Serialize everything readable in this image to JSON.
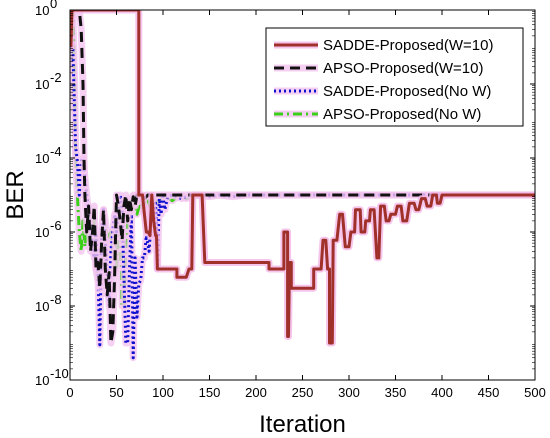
{
  "chart_data": {
    "type": "line",
    "title": "",
    "xlabel": "Iteration",
    "ylabel": "BER",
    "xlim": [
      0,
      500
    ],
    "ylim": [
      1e-10,
      1
    ],
    "yscale": "log",
    "grid": false,
    "legend_position": "top-right",
    "x_ticks": [
      "0",
      "50",
      "100",
      "150",
      "200",
      "250",
      "300",
      "350",
      "400",
      "450",
      "500"
    ],
    "y_ticks": [
      {
        "base": "10",
        "exp": "0"
      },
      {
        "base": "10",
        "exp": "-2"
      },
      {
        "base": "10",
        "exp": "-4"
      },
      {
        "base": "10",
        "exp": "-6"
      },
      {
        "base": "10",
        "exp": "-8"
      },
      {
        "base": "10",
        "exp": "-10"
      }
    ],
    "series": [
      {
        "name": "SADDE-Proposed(W=10)",
        "color": "#a0302a",
        "halo": "#f2b6e6",
        "style": "solid",
        "points": [
          [
            1,
            0.1
          ],
          [
            2,
            0.9
          ],
          [
            4,
            1
          ],
          [
            30,
            1
          ],
          [
            50,
            1
          ],
          [
            70,
            1
          ],
          [
            74,
            1
          ],
          [
            74,
            1e-05
          ],
          [
            78,
            1e-05
          ],
          [
            80,
            3e-06
          ],
          [
            82,
            1e-06
          ],
          [
            84,
            1e-06
          ],
          [
            86,
            8e-07
          ],
          [
            88,
            1e-05
          ],
          [
            90,
            2e-06
          ],
          [
            92,
            8e-07
          ],
          [
            93,
            8e-07
          ],
          [
            94,
            1e-07
          ],
          [
            100,
            1e-07
          ],
          [
            105,
            1e-07
          ],
          [
            110,
            1e-07
          ],
          [
            115,
            1e-07
          ],
          [
            115,
            6e-08
          ],
          [
            125,
            6e-08
          ],
          [
            125,
            6e-08
          ],
          [
            128,
            1e-07
          ],
          [
            131,
            1e-07
          ],
          [
            132,
            1e-05
          ],
          [
            137,
            1e-05
          ],
          [
            137,
            1e-05
          ],
          [
            142,
            1e-05
          ],
          [
            145,
            1.5e-07
          ],
          [
            180,
            1.5e-07
          ],
          [
            200,
            1.5e-07
          ],
          [
            214,
            1.5e-07
          ],
          [
            214,
            1e-07
          ],
          [
            230,
            1e-07
          ],
          [
            230,
            1e-06
          ],
          [
            234,
            1e-06
          ],
          [
            234,
            1.5e-09
          ],
          [
            235,
            1.5e-09
          ],
          [
            236,
            1.5e-07
          ],
          [
            238,
            1.5e-07
          ],
          [
            238,
            3e-08
          ],
          [
            255,
            3e-08
          ],
          [
            262,
            3e-08
          ],
          [
            262,
            1e-07
          ],
          [
            270,
            1e-07
          ],
          [
            272,
            6e-07
          ],
          [
            275,
            6e-07
          ],
          [
            277,
            1e-07
          ],
          [
            279,
            1e-07
          ],
          [
            279,
            1e-09
          ],
          [
            282,
            1e-09
          ],
          [
            283,
            6e-07
          ],
          [
            287,
            6e-07
          ],
          [
            290,
            3e-06
          ],
          [
            293,
            3e-06
          ],
          [
            296,
            4e-07
          ],
          [
            300,
            4e-07
          ],
          [
            302,
            1e-06
          ],
          [
            306,
            1e-06
          ],
          [
            307,
            4e-06
          ],
          [
            312,
            4e-06
          ],
          [
            313,
            1e-06
          ],
          [
            317,
            1e-06
          ],
          [
            318,
            2e-06
          ],
          [
            322,
            2e-06
          ],
          [
            323,
            4e-06
          ],
          [
            327,
            4e-06
          ],
          [
            330,
            2e-07
          ],
          [
            332,
            2e-07
          ],
          [
            334,
            5e-06
          ],
          [
            338,
            5e-06
          ],
          [
            340,
            2e-06
          ],
          [
            343,
            2e-06
          ],
          [
            345,
            3e-06
          ],
          [
            350,
            3e-06
          ],
          [
            352,
            5e-06
          ],
          [
            356,
            5e-06
          ],
          [
            358,
            2e-06
          ],
          [
            362,
            2e-06
          ],
          [
            365,
            6e-06
          ],
          [
            370,
            6e-06
          ],
          [
            372,
            4e-06
          ],
          [
            375,
            4e-06
          ],
          [
            378,
            8e-06
          ],
          [
            382,
            8e-06
          ],
          [
            384,
            5e-06
          ],
          [
            388,
            5e-06
          ],
          [
            390,
            1e-05
          ],
          [
            394,
            1e-05
          ],
          [
            395,
            6e-06
          ],
          [
            398,
            6e-06
          ],
          [
            400,
            1e-05
          ],
          [
            410,
            1e-05
          ],
          [
            500,
            1e-05
          ]
        ]
      },
      {
        "name": "APSO-Proposed(W=10)",
        "color": "#111111",
        "halo": "#f3c4ef",
        "style": "dashed",
        "points": [
          [
            0,
            0.9
          ],
          [
            2,
            1
          ],
          [
            10,
            1
          ],
          [
            12,
            0.3
          ],
          [
            14,
            0.01
          ],
          [
            15,
            0.0001
          ],
          [
            16,
            1e-05
          ],
          [
            18,
            1e-06
          ],
          [
            20,
            5e-06
          ],
          [
            22,
            3e-07
          ],
          [
            24,
            8e-07
          ],
          [
            26,
            5e-06
          ],
          [
            28,
            1e-07
          ],
          [
            30,
            1.5e-07
          ],
          [
            32,
            3e-08
          ],
          [
            34,
            5e-07
          ],
          [
            36,
            4e-06
          ],
          [
            38,
            1e-07
          ],
          [
            40,
            2e-08
          ],
          [
            42,
            8e-08
          ],
          [
            44,
            1e-09
          ],
          [
            46,
            2e-09
          ],
          [
            48,
            6e-08
          ],
          [
            50,
            1e-05
          ],
          [
            52,
            5e-06
          ],
          [
            54,
            2e-06
          ],
          [
            56,
            6e-07
          ],
          [
            58,
            5e-06
          ],
          [
            60,
            1e-05
          ],
          [
            62,
            2e-06
          ],
          [
            64,
            8e-06
          ],
          [
            66,
            4e-06
          ],
          [
            68,
            9e-06
          ],
          [
            70,
            5e-06
          ],
          [
            72,
            1e-05
          ],
          [
            76,
            1e-05
          ],
          [
            80,
            8e-06
          ],
          [
            84,
            1e-05
          ],
          [
            90,
            1e-05
          ],
          [
            500,
            1e-05
          ]
        ]
      },
      {
        "name": "SADDE-Proposed(No W)",
        "color": "#1010d0",
        "halo": "#f3c4ef",
        "style": "dotted",
        "points": [
          [
            0,
            0.1
          ],
          [
            3,
            0.1
          ],
          [
            6,
            0.0002
          ],
          [
            8,
            8e-05
          ],
          [
            10,
            1e-05
          ],
          [
            12,
            8e-05
          ],
          [
            14,
            0.0001
          ],
          [
            16,
            3e-05
          ],
          [
            18,
            1e-05
          ],
          [
            20,
            3e-06
          ],
          [
            22,
            1e-06
          ],
          [
            24,
            5e-07
          ],
          [
            26,
            2e-07
          ],
          [
            28,
            8e-07
          ],
          [
            30,
            8e-08
          ],
          [
            32,
            9e-10
          ],
          [
            34,
            1e-06
          ],
          [
            36,
            4e-06
          ],
          [
            40,
            8e-08
          ],
          [
            42,
            1e-08
          ],
          [
            44,
            3e-07
          ],
          [
            46,
            1e-06
          ],
          [
            48,
            3e-06
          ],
          [
            50,
            1e-06
          ],
          [
            52,
            5e-06
          ],
          [
            54,
            1e-05
          ],
          [
            56,
            4e-06
          ],
          [
            60,
            1e-09
          ],
          [
            62,
            1e-09
          ],
          [
            64,
            1e-07
          ],
          [
            66,
            3e-06
          ],
          [
            68,
            4e-10
          ],
          [
            70,
            2e-07
          ],
          [
            72,
            5e-09
          ],
          [
            74,
            4e-08
          ],
          [
            76,
            5e-08
          ],
          [
            78,
            2e-07
          ],
          [
            80,
            2e-07
          ],
          [
            82,
            8e-07
          ],
          [
            85,
            3e-07
          ],
          [
            88,
            4e-06
          ],
          [
            90,
            2e-06
          ],
          [
            92,
            6e-06
          ],
          [
            94,
            1e-07
          ],
          [
            96,
            8e-06
          ],
          [
            98,
            3e-06
          ],
          [
            100,
            9e-06
          ],
          [
            102,
            4e-06
          ],
          [
            105,
            9e-06
          ],
          [
            110,
            1e-05
          ],
          [
            120,
            8e-06
          ],
          [
            130,
            1e-05
          ],
          [
            150,
            9e-06
          ],
          [
            160,
            1e-05
          ],
          [
            175,
            9e-06
          ],
          [
            190,
            1e-05
          ],
          [
            500,
            1e-05
          ]
        ]
      },
      {
        "name": "APSO-Proposed(No W)",
        "color": "#3ccf1a",
        "halo": "#f3c4ef",
        "style": "dashdot",
        "points": [
          [
            0,
            1
          ],
          [
            3,
            1
          ],
          [
            5,
            0.01
          ],
          [
            6,
            0.0001
          ],
          [
            8,
            1e-05
          ],
          [
            10,
            1e-06
          ],
          [
            12,
            3e-07
          ],
          [
            14,
            2e-06
          ],
          [
            16,
            4e-07
          ],
          [
            18,
            1e-06
          ],
          [
            20,
            6e-07
          ],
          [
            22,
            3e-06
          ],
          [
            24,
            8e-07
          ],
          [
            26,
            2e-06
          ],
          [
            28,
            1e-07
          ],
          [
            30,
            5e-08
          ],
          [
            32,
            5e-08
          ],
          [
            34,
            1e-07
          ],
          [
            36,
            4e-06
          ],
          [
            38,
            2e-06
          ],
          [
            40,
            6e-07
          ],
          [
            42,
            8e-07
          ],
          [
            44,
            1e-06
          ],
          [
            46,
            3e-07
          ],
          [
            48,
            8e-07
          ],
          [
            50,
            1e-07
          ],
          [
            52,
            2e-06
          ],
          [
            54,
            6e-06
          ],
          [
            56,
            1e-08
          ],
          [
            58,
            1e-08
          ],
          [
            60,
            3e-07
          ],
          [
            62,
            2e-06
          ],
          [
            64,
            8e-06
          ],
          [
            66,
            4e-06
          ],
          [
            68,
            1e-05
          ],
          [
            70,
            6e-06
          ],
          [
            72,
            3e-06
          ],
          [
            75,
            6e-06
          ],
          [
            78,
            4e-06
          ],
          [
            82,
            1e-05
          ],
          [
            86,
            5e-06
          ],
          [
            90,
            8e-06
          ],
          [
            95,
            6e-06
          ],
          [
            100,
            1e-05
          ],
          [
            110,
            7e-06
          ],
          [
            118,
            1e-05
          ],
          [
            125,
            8e-06
          ],
          [
            135,
            1e-05
          ],
          [
            500,
            1e-05
          ]
        ]
      }
    ]
  }
}
